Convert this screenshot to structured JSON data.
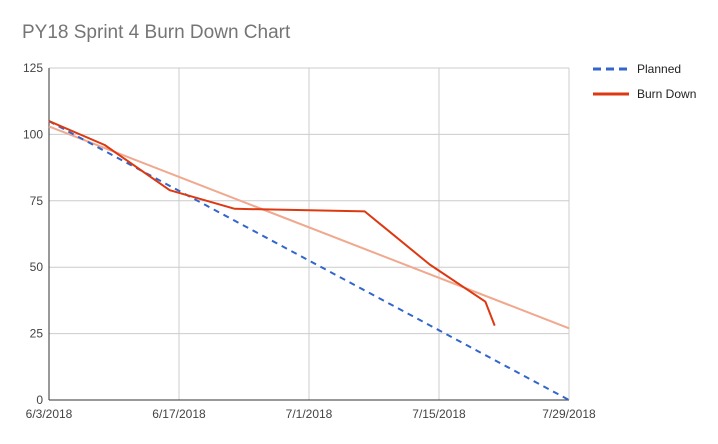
{
  "chart_data": {
    "type": "line",
    "title": "PY18 Sprint 4 Burn Down Chart",
    "xlabel": "",
    "ylabel": "",
    "x_range": [
      "6/3/2018",
      "7/29/2018"
    ],
    "x_ticks": [
      "6/3/2018",
      "6/17/2018",
      "7/1/2018",
      "7/15/2018",
      "7/29/2018"
    ],
    "y_range": [
      0,
      125
    ],
    "y_ticks": [
      0,
      25,
      50,
      75,
      100,
      125
    ],
    "grid": true,
    "legend_position": "right",
    "series": [
      {
        "name": "Planned",
        "style": "dashed",
        "color": "#3366cc",
        "points": [
          [
            "6/3/2018",
            105
          ],
          [
            "7/29/2018",
            0
          ]
        ]
      },
      {
        "name": "Burn Down",
        "style": "solid",
        "color": "#dc3912",
        "points": [
          [
            "6/3/2018",
            105
          ],
          [
            "6/9/2018",
            96
          ],
          [
            "6/16/2018",
            79
          ],
          [
            "6/23/2018",
            72
          ],
          [
            "7/7/2018",
            71
          ],
          [
            "7/14/2018",
            51
          ],
          [
            "7/20/2018",
            37
          ],
          [
            "7/21/2018",
            28
          ]
        ]
      }
    ],
    "trendline": {
      "color": "#f0a88e",
      "points": [
        [
          "6/3/2018",
          103
        ],
        [
          "7/29/2018",
          27
        ]
      ]
    }
  }
}
